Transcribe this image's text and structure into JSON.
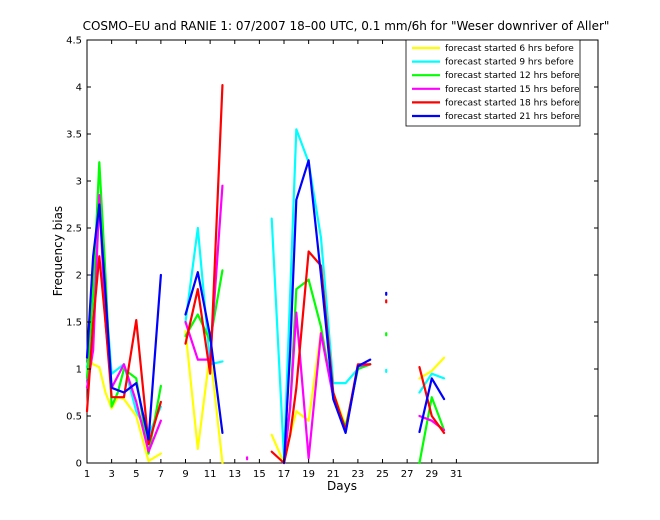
{
  "chart_data": {
    "type": "line",
    "title": "COSMO–EU and RANIE 1: 07/2007 18–00 UTC, 0.1 mm/6h for \"Weser downriver of Aller\"",
    "xlabel": "Days",
    "ylabel": "Frequency bias",
    "xlim": [
      1,
      42.5
    ],
    "ylim": [
      0,
      4.5
    ],
    "xticks": [
      1,
      3,
      5,
      7,
      9,
      11,
      13,
      15,
      17,
      19,
      21,
      23,
      25,
      27,
      29,
      31
    ],
    "xtick_labels": [
      "1",
      "3",
      "5",
      "7",
      "9",
      "11",
      "13",
      "15",
      "17",
      "19",
      "21",
      "23",
      "25",
      "27",
      "29",
      "31"
    ],
    "yticks": [
      0,
      0.5,
      1,
      1.5,
      2,
      2.5,
      3,
      3.5,
      4,
      4.5
    ],
    "ytick_labels": [
      "0",
      "0.5",
      "1",
      "1.5",
      "2",
      "2.5",
      "3",
      "3.5",
      "4",
      "4.5"
    ],
    "grid": false,
    "legend_position": "top-right",
    "series": [
      {
        "name": "forecast started 6 hrs before",
        "color": "#ffff00",
        "points": [
          [
            1,
            1.12
          ],
          [
            1.5,
            1.05
          ],
          [
            2,
            1.02
          ],
          [
            2.5,
            0.75
          ],
          [
            3,
            0.58
          ],
          [
            3.5,
            0.7
          ],
          [
            4,
            0.68
          ],
          [
            5,
            0.5
          ],
          [
            6,
            0.02
          ],
          [
            7,
            0.1
          ],
          null,
          [
            9,
            1.4
          ],
          [
            10,
            0.15
          ],
          [
            11,
            1.18
          ],
          [
            12,
            0
          ],
          null,
          [
            16,
            0.3
          ],
          [
            17,
            0
          ],
          [
            17.5,
            0.3
          ],
          [
            18,
            0.55
          ],
          [
            19,
            0.45
          ],
          [
            20,
            1.4
          ],
          [
            21,
            0.75
          ],
          [
            22,
            0.4
          ],
          [
            23,
            1.0
          ],
          [
            24,
            1.05
          ],
          null,
          [
            28,
            0.9
          ],
          [
            29,
            0.98
          ],
          [
            30,
            1.12
          ]
        ]
      },
      {
        "name": "forecast started 9 hrs before",
        "color": "#00ffff",
        "points": [
          [
            1,
            1.02
          ],
          [
            1.5,
            1.35
          ],
          [
            2,
            2.8
          ],
          [
            2.5,
            1.8
          ],
          [
            3,
            0.95
          ],
          [
            4,
            1.05
          ],
          [
            5,
            0.55
          ],
          [
            6,
            0.3
          ],
          [
            7,
            0.6
          ],
          null,
          [
            9,
            1.5
          ],
          [
            10,
            2.5
          ],
          [
            11,
            1.05
          ],
          [
            12,
            1.08
          ],
          null,
          [
            16,
            2.6
          ],
          [
            17,
            0.05
          ],
          [
            18,
            3.55
          ],
          [
            19,
            3.2
          ],
          [
            20,
            2.4
          ],
          [
            21,
            0.85
          ],
          [
            22,
            0.85
          ],
          [
            23,
            1.0
          ],
          [
            24,
            1.05
          ],
          null,
          [
            25.3,
            0.98
          ],
          null,
          [
            28,
            0.75
          ],
          [
            29,
            0.95
          ],
          [
            30,
            0.9
          ]
        ]
      },
      {
        "name": "forecast started 12 hrs before",
        "color": "#00ff00",
        "points": [
          [
            1,
            0.9
          ],
          [
            1.5,
            1.8
          ],
          [
            2,
            3.2
          ],
          [
            2.5,
            2.0
          ],
          [
            3,
            0.6
          ],
          [
            3.5,
            0.75
          ],
          [
            4,
            1.0
          ],
          [
            5,
            0.9
          ],
          [
            6,
            0.1
          ],
          [
            7,
            0.82
          ],
          null,
          [
            9,
            1.35
          ],
          [
            10,
            1.58
          ],
          [
            11,
            1.3
          ],
          [
            12,
            2.05
          ],
          null,
          [
            17,
            0
          ],
          [
            17.5,
            0.6
          ],
          [
            18,
            1.85
          ],
          [
            19,
            1.95
          ],
          [
            20,
            1.45
          ],
          [
            21,
            0.7
          ],
          [
            22,
            0.38
          ],
          [
            23,
            1.0
          ],
          [
            24,
            1.05
          ],
          null,
          [
            25.3,
            1.37
          ],
          null,
          [
            28,
            0
          ],
          [
            29,
            0.7
          ],
          [
            30,
            0.35
          ]
        ]
      },
      {
        "name": "forecast started 15 hrs before",
        "color": "#ff00ff",
        "points": [
          [
            1,
            0.8
          ],
          [
            1.5,
            1.2
          ],
          [
            2,
            2.85
          ],
          [
            2.5,
            1.5
          ],
          [
            3,
            0.8
          ],
          [
            4,
            1.05
          ],
          [
            5,
            0.65
          ],
          [
            6,
            0.12
          ],
          [
            7,
            0.45
          ],
          null,
          [
            9,
            1.5
          ],
          [
            10,
            1.1
          ],
          [
            11,
            1.1
          ],
          [
            12,
            2.95
          ],
          null,
          [
            14,
            0.05
          ],
          null,
          [
            17,
            0
          ],
          [
            17.5,
            0.6
          ],
          [
            18,
            1.6
          ],
          [
            19,
            0.05
          ],
          [
            20,
            1.38
          ],
          [
            21,
            0.7
          ],
          [
            22,
            0.33
          ],
          [
            23,
            1.03
          ],
          [
            24,
            1.05
          ],
          null,
          [
            28,
            0.5
          ],
          [
            29,
            0.45
          ],
          [
            30,
            0.35
          ]
        ]
      },
      {
        "name": "forecast started 18 hrs before",
        "color": "#ff0000",
        "points": [
          [
            1,
            0.55
          ],
          [
            1.5,
            1.5
          ],
          [
            2,
            2.2
          ],
          [
            2.5,
            1.5
          ],
          [
            3,
            0.7
          ],
          [
            4,
            0.7
          ],
          [
            5,
            1.52
          ],
          [
            6,
            0.2
          ],
          [
            7,
            0.65
          ],
          null,
          [
            9,
            1.27
          ],
          [
            10,
            1.85
          ],
          [
            11,
            0.95
          ],
          [
            12,
            4.02
          ],
          null,
          [
            16,
            0.12
          ],
          [
            17,
            0
          ],
          [
            17.5,
            0.3
          ],
          [
            18,
            0.8
          ],
          [
            19,
            2.25
          ],
          [
            20,
            2.1
          ],
          [
            21,
            0.75
          ],
          [
            22,
            0.35
          ],
          [
            23,
            1.05
          ],
          [
            24,
            1.05
          ],
          null,
          [
            25.3,
            1.72
          ],
          null,
          [
            28,
            1.02
          ],
          [
            29,
            0.5
          ],
          [
            30,
            0.32
          ]
        ]
      },
      {
        "name": "forecast started 21 hrs before",
        "color": "#0000ff",
        "points": [
          [
            1,
            1.12
          ],
          [
            1.5,
            2.2
          ],
          [
            2,
            2.75
          ],
          [
            2.5,
            1.8
          ],
          [
            3,
            0.8
          ],
          [
            4,
            0.75
          ],
          [
            5,
            0.85
          ],
          [
            6,
            0.25
          ],
          [
            7,
            2.0
          ],
          null,
          [
            9,
            1.58
          ],
          [
            10,
            2.03
          ],
          [
            11,
            1.35
          ],
          [
            12,
            0.32
          ],
          null,
          [
            17,
            0
          ],
          [
            17.5,
            1.2
          ],
          [
            18,
            2.8
          ],
          [
            19,
            3.22
          ],
          [
            20,
            2.0
          ],
          [
            21,
            0.68
          ],
          [
            22,
            0.32
          ],
          [
            23,
            1.03
          ],
          [
            24,
            1.1
          ],
          null,
          [
            25.3,
            1.8
          ],
          null,
          [
            28,
            0.33
          ],
          [
            29,
            0.9
          ],
          [
            30,
            0.68
          ]
        ]
      }
    ]
  }
}
